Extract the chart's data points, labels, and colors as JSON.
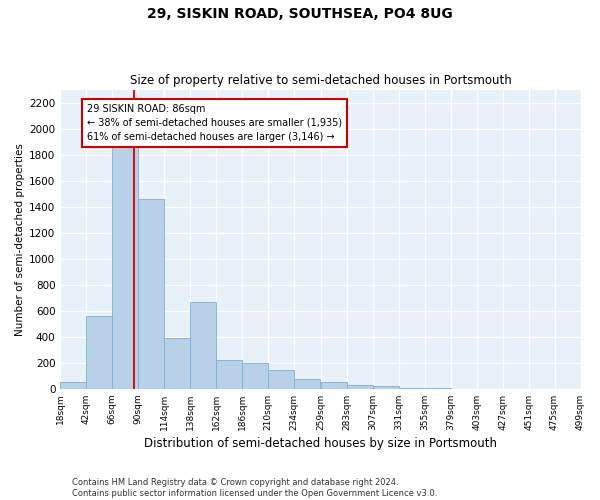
{
  "title": "29, SISKIN ROAD, SOUTHSEA, PO4 8UG",
  "subtitle": "Size of property relative to semi-detached houses in Portsmouth",
  "xlabel": "Distribution of semi-detached houses by size in Portsmouth",
  "ylabel": "Number of semi-detached properties",
  "bar_color": "#b8d0e8",
  "bar_edge_color": "#7aafd4",
  "bg_color": "#e8f0f8",
  "grid_color": "#ffffff",
  "property_line_x": 86,
  "property_line_color": "#cc0000",
  "annotation_text": "29 SISKIN ROAD: 86sqm\n← 38% of semi-detached houses are smaller (1,935)\n61% of semi-detached houses are larger (3,146) →",
  "annotation_box_color": "#ffffff",
  "annotation_box_edge": "#cc0000",
  "bins": [
    18,
    42,
    66,
    90,
    114,
    138,
    162,
    186,
    210,
    234,
    259,
    283,
    307,
    331,
    355,
    379,
    403,
    427,
    451,
    475,
    499
  ],
  "bin_labels": [
    "18sqm",
    "42sqm",
    "66sqm",
    "90sqm",
    "114sqm",
    "138sqm",
    "162sqm",
    "186sqm",
    "210sqm",
    "234sqm",
    "259sqm",
    "283sqm",
    "307sqm",
    "331sqm",
    "355sqm",
    "379sqm",
    "403sqm",
    "427sqm",
    "451sqm",
    "475sqm",
    "499sqm"
  ],
  "bar_values": [
    55,
    560,
    1870,
    1460,
    390,
    670,
    220,
    195,
    145,
    75,
    50,
    28,
    18,
    8,
    3,
    2,
    0,
    0,
    0,
    0
  ],
  "ylim": [
    0,
    2300
  ],
  "yticks": [
    0,
    200,
    400,
    600,
    800,
    1000,
    1200,
    1400,
    1600,
    1800,
    2000,
    2200
  ],
  "footnote": "Contains HM Land Registry data © Crown copyright and database right 2024.\nContains public sector information licensed under the Open Government Licence v3.0.",
  "fig_width": 6.0,
  "fig_height": 5.0,
  "dpi": 100
}
